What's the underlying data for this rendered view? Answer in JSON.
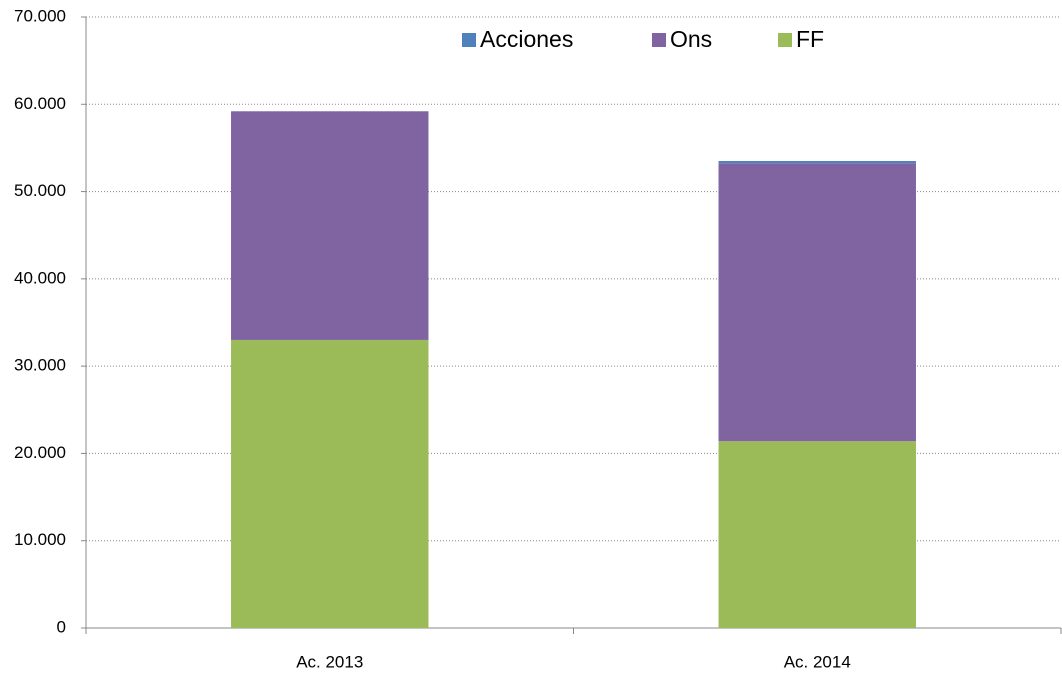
{
  "chart_data": {
    "type": "stacked_bar",
    "categories": [
      "Ac. 2013",
      "Ac. 2014"
    ],
    "series": [
      {
        "name": "Acciones",
        "color": "#4f81bd",
        "values": [
          0,
          250
        ]
      },
      {
        "name": "Ons",
        "color": "#8064a2",
        "values": [
          26200,
          31850
        ]
      },
      {
        "name": "FF",
        "color": "#9bbb59",
        "values": [
          33000,
          21400
        ]
      }
    ],
    "ylim": [
      0,
      70000
    ],
    "yticks": [
      0,
      {
        "value": 10000,
        "label": "10.000"
      },
      {
        "value": 20000,
        "label": "20.000"
      },
      {
        "value": 30000,
        "label": "30.000"
      },
      {
        "value": 40000,
        "label": "40.000"
      },
      {
        "value": 50000,
        "label": "50.000"
      },
      {
        "value": 60000,
        "label": "60.000"
      },
      {
        "value": 70000,
        "label": "70.000"
      }
    ],
    "grid": true,
    "legend": "top"
  }
}
